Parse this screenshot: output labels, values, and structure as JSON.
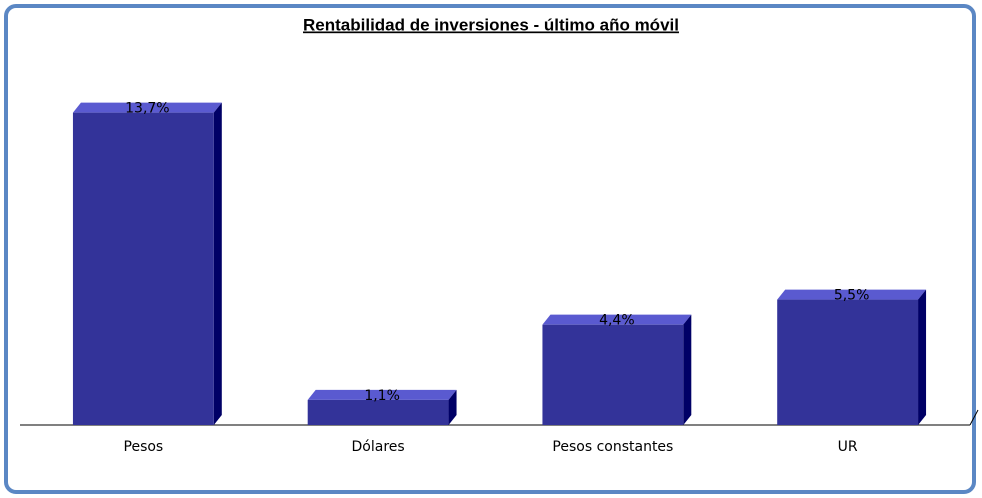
{
  "chart_data": {
    "type": "bar",
    "title": "Rentabilidad de inversiones - último año móvil",
    "categories": [
      "Pesos",
      "Dólares",
      "Pesos constantes",
      "UR"
    ],
    "values": [
      13.7,
      1.1,
      4.4,
      5.5
    ],
    "value_labels": [
      "13,7%",
      "1,1%",
      "4,4%",
      "5,5%"
    ],
    "color": "#333399",
    "grid": false
  }
}
